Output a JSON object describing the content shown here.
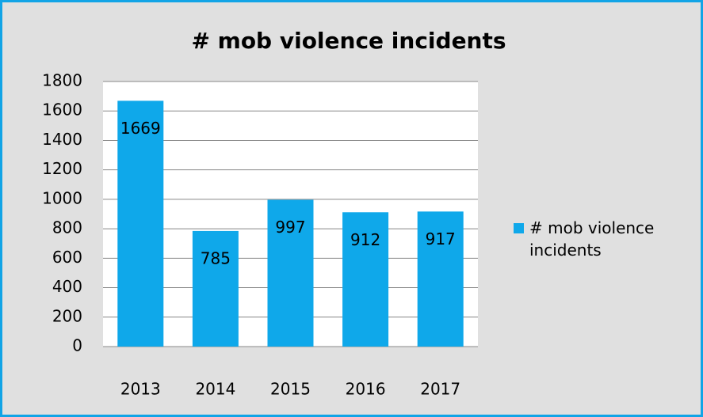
{
  "chart_data": {
    "type": "bar",
    "title": "# mob violence incidents",
    "categories": [
      "2013",
      "2014",
      "2015",
      "2016",
      "2017"
    ],
    "series": [
      {
        "name": "# mob violence incidents",
        "color": "#0fa8ea",
        "values": [
          1669,
          785,
          997,
          912,
          917
        ]
      }
    ],
    "ylim": [
      0,
      1800
    ],
    "yticks": [
      0,
      200,
      400,
      600,
      800,
      1000,
      1200,
      1400,
      1600,
      1800
    ],
    "grid": true,
    "legend": "right"
  }
}
